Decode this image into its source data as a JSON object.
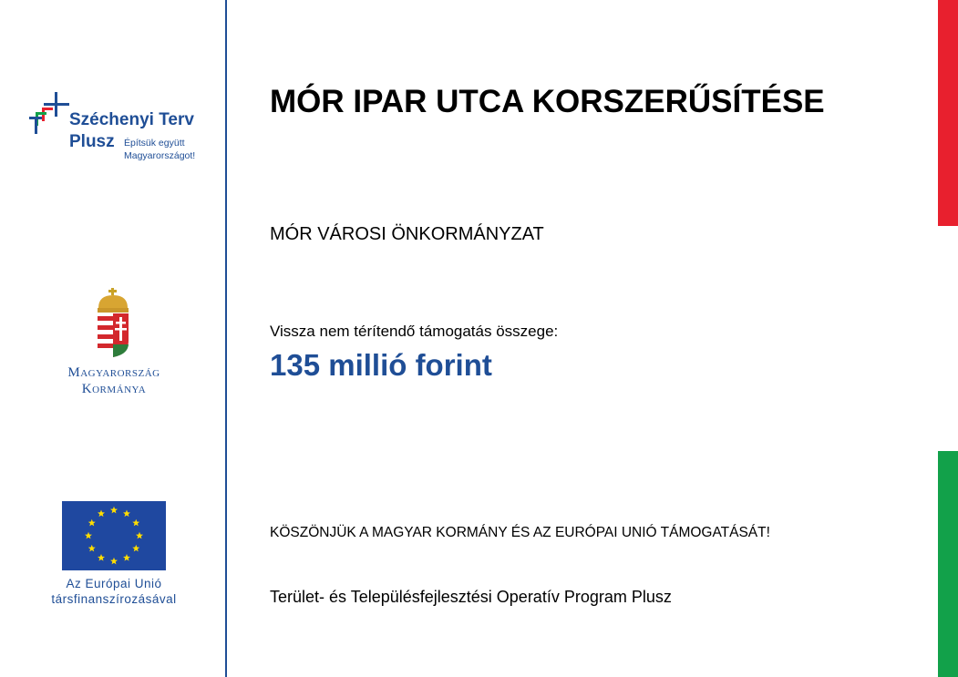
{
  "logos": {
    "szechenyi": {
      "title": "Széchenyi Terv",
      "plusz": "Plusz",
      "slogan_1": "Építsük együtt",
      "slogan_2": "Magyarországot!"
    },
    "government": {
      "line_1": "Magyarország",
      "line_2": "Kormánya"
    },
    "eu": {
      "line_1": "Az Európai Unió",
      "line_2": "társfinanszírozásával"
    }
  },
  "main": {
    "title": "MÓR IPAR UTCA KORSZERŰSÍTÉSE",
    "beneficiary": "MÓR VÁROSI ÖNKORMÁNYZAT",
    "amount_label": "Vissza nem térítendő támogatás összege:",
    "amount": "135 millió forint",
    "thanks": "KÖSZÖNJÜK A MAGYAR KORMÁNY ÉS AZ EURÓPAI UNIÓ TÁMOGATÁSÁT!",
    "program": "Terület- és Településfejlesztési Operatív Program Plusz"
  },
  "colors": {
    "brand_blue": "#1f4e96",
    "red": "#e8202e",
    "green": "#12a14a",
    "eu_blue": "#1f48a0",
    "eu_star": "#ffdd00"
  }
}
